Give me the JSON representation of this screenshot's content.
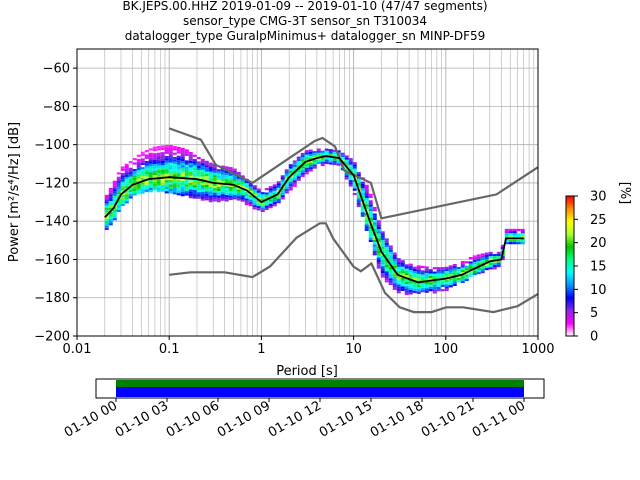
{
  "title": {
    "line1": "BK.JEPS.00.HHZ   2019-01-09 -- 2019-01-10  (47/47 segments)",
    "line2": "sensor_type CMG-3T sensor_sn T310034",
    "line3": "datalogger_type GuralpMinimus+ datalogger_sn MINP-DF59"
  },
  "chart_data": [
    {
      "type": "heatmap",
      "title": "BK.JEPS.00.HHZ   2019-01-09 -- 2019-01-10  (47/47 segments)",
      "xlabel": "Period [s]",
      "ylabel": "Power [m²/s⁴/Hz] [dB]",
      "xscale": "log",
      "xlim": [
        0.01,
        1000
      ],
      "ylim": [
        -200,
        -50
      ],
      "grid": true,
      "x_ticks": [
        0.01,
        0.1,
        1,
        10,
        100,
        1000
      ],
      "x_tick_labels": [
        "0.01",
        "0.1",
        "1",
        "10",
        "100",
        "1000"
      ],
      "y_ticks": [
        -200,
        -180,
        -160,
        -140,
        -120,
        -100,
        -80,
        -60
      ],
      "colorbar": {
        "label": "[%]",
        "range": [
          0,
          30
        ],
        "ticks": [
          0,
          5,
          10,
          15,
          20,
          25,
          30
        ],
        "colors": [
          "#ffffff",
          "#ff00ff",
          "#8a2be2",
          "#0000ff",
          "#0096ff",
          "#00ffff",
          "#00ff7f",
          "#00c800",
          "#adff2f",
          "#ffff00",
          "#ff8c00",
          "#ff0000"
        ]
      },
      "mode_curve": {
        "name": "mode",
        "color": "#000000",
        "x": [
          0.02,
          0.025,
          0.03,
          0.04,
          0.06,
          0.1,
          0.2,
          0.3,
          0.5,
          0.7,
          1,
          1.5,
          2,
          3,
          4,
          5,
          7,
          10,
          15,
          20,
          30,
          50,
          70,
          100,
          150,
          200,
          300,
          400,
          450,
          500,
          700
        ],
        "y": [
          -138,
          -133,
          -126,
          -121,
          -118,
          -117,
          -118,
          -120,
          -121,
          -124,
          -130,
          -126,
          -117,
          -109,
          -107,
          -106,
          -107,
          -116,
          -140,
          -156,
          -168,
          -172,
          -171,
          -170,
          -168,
          -165,
          -161,
          -160,
          -149,
          -149,
          -149
        ]
      },
      "noise_models": [
        {
          "name": "NHNM",
          "color": "#666666",
          "x": [
            0.1,
            0.22,
            0.32,
            0.8,
            3.8,
            4.6,
            6.3,
            7.9,
            15.4,
            20,
            354.8,
            10000
          ],
          "y": [
            -91.5,
            -97.4,
            -110.5,
            -120,
            -98,
            -96.5,
            -101,
            -113.5,
            -120,
            -138.5,
            -126,
            -80.1
          ]
        },
        {
          "name": "NLNM",
          "color": "#666666",
          "x": [
            0.1,
            0.17,
            0.4,
            0.8,
            1.24,
            2.4,
            4.3,
            5,
            6,
            10,
            12,
            15.6,
            21.9,
            31.6,
            45,
            70,
            101,
            154,
            328,
            600,
            1000
          ],
          "y": [
            -168,
            -166.7,
            -166.7,
            -169.2,
            -163.7,
            -148.6,
            -141.1,
            -141.1,
            -149,
            -163.8,
            -166.2,
            -162.1,
            -177.5,
            -185,
            -187.5,
            -187.5,
            -185,
            -185,
            -187.5,
            -184.4,
            -178
          ]
        }
      ],
      "psd_distribution": {
        "x": [
          0.02,
          0.025,
          0.03,
          0.04,
          0.05,
          0.07,
          0.1,
          0.15,
          0.2,
          0.3,
          0.5,
          0.7,
          1,
          1.5,
          2,
          3,
          4,
          5,
          7,
          10,
          15,
          20,
          30,
          40,
          50,
          70,
          100,
          150,
          200,
          300,
          400,
          450,
          500,
          700
        ],
        "y_low": [
          -145,
          -140,
          -133,
          -127,
          -125,
          -124,
          -125,
          -127,
          -128,
          -130,
          -128,
          -131,
          -135,
          -131,
          -124,
          -115,
          -111,
          -110,
          -111,
          -124,
          -150,
          -168,
          -177,
          -178,
          -177,
          -177,
          -176,
          -172,
          -168,
          -165,
          -163,
          -152,
          -152,
          -152
        ],
        "y_high": [
          -128,
          -120,
          -112,
          -108,
          -104,
          -101,
          -100,
          -102,
          -106,
          -110,
          -112,
          -118,
          -124,
          -120,
          -111,
          -103,
          -102,
          -102,
          -103,
          -108,
          -124,
          -144,
          -159,
          -162,
          -163,
          -164,
          -164,
          -161,
          -158,
          -156,
          -156,
          -144,
          -144,
          -144
        ]
      }
    },
    {
      "type": "bar",
      "title": "",
      "orientation": "horizontal",
      "x_tick_labels": [
        "01-10 00",
        "01-10 03",
        "01-10 06",
        "01-10 09",
        "01-10 12",
        "01-10 15",
        "01-10 18",
        "01-10 21",
        "01-11 00"
      ],
      "bands": [
        {
          "name": "",
          "color": "#008000",
          "start": "01-10 00",
          "end": "01-11 00"
        },
        {
          "name": "",
          "color": "#0000ff",
          "start": "01-10 00",
          "end": "01-11 00"
        }
      ]
    }
  ]
}
